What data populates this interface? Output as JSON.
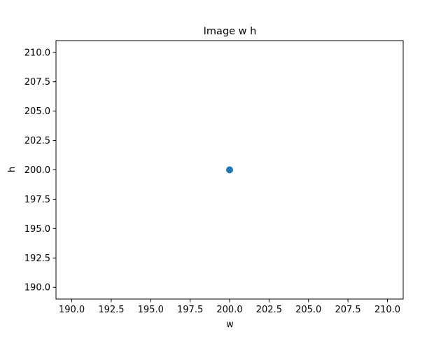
{
  "chart_data": {
    "type": "scatter",
    "title": "Image w h",
    "xlabel": "w",
    "ylabel": "h",
    "xlim": [
      189,
      211
    ],
    "ylim": [
      189,
      211
    ],
    "xticks": [
      190.0,
      192.5,
      195.0,
      197.5,
      200.0,
      202.5,
      205.0,
      207.5,
      210.0
    ],
    "yticks": [
      190.0,
      192.5,
      195.0,
      197.5,
      200.0,
      202.5,
      205.0,
      207.5,
      210.0
    ],
    "xtick_labels": [
      "190.0",
      "192.5",
      "195.0",
      "197.5",
      "200.0",
      "202.5",
      "205.0",
      "207.5",
      "210.0"
    ],
    "ytick_labels": [
      "190.0",
      "192.5",
      "195.0",
      "197.5",
      "200.0",
      "202.5",
      "205.0",
      "207.5",
      "210.0"
    ],
    "grid": false,
    "series": [
      {
        "color": "#1f77b4",
        "points": [
          {
            "x": 200,
            "y": 200
          }
        ]
      }
    ]
  }
}
